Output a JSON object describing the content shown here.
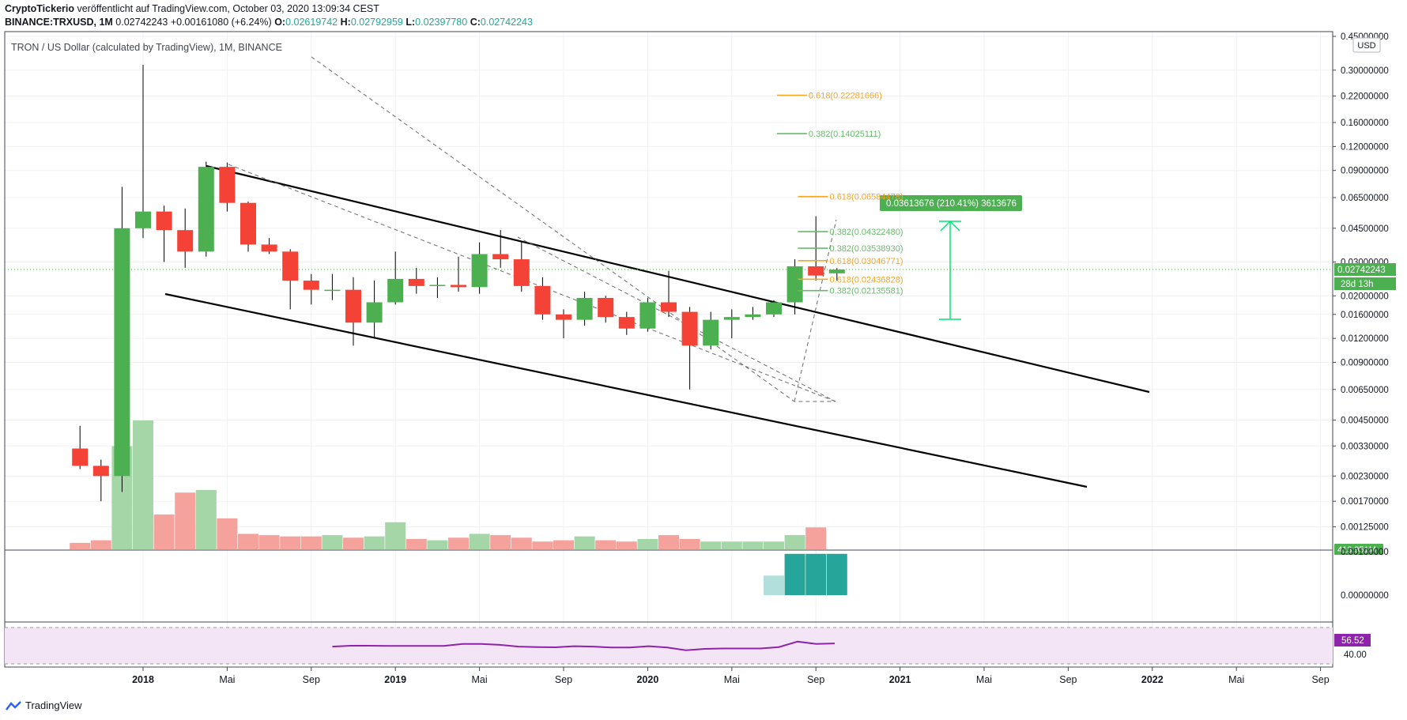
{
  "header": {
    "publisher": "CryptoTickerio",
    "published_text": " veröffentlicht auf TradingView.com, October 03, 2020 13:09:34 CEST",
    "symbol": "BINANCE:TRXUSD, 1M",
    "last": "0.02742243",
    "change": "+0.00161080 (+6.24%)",
    "o_label": "O:",
    "o": "0.02619742",
    "h_label": "H:",
    "h": "0.02792959",
    "l_label": "L:",
    "l": "0.02397780",
    "c_label": "C:",
    "c": "0.02742243"
  },
  "footer": {
    "brand": "TradingView"
  },
  "colors": {
    "up": "#4caf50",
    "down": "#f44336",
    "up_vol": "#a5d6a7",
    "down_vol": "#f5a29c",
    "fib_green": "#66bb6a",
    "fib_orange": "#f5a623",
    "rsi": "#8e24aa",
    "osc": "#26a69a"
  },
  "chart_data": {
    "type": "candlestick",
    "title": "TRON / US Dollar (calculated by TradingView), 1M, BINANCE",
    "currency": "USD",
    "scale": "log",
    "y_range": [
      0.00105,
      0.45
    ],
    "y_ticks": [
      "0.45000000",
      "0.30000000",
      "0.22000000",
      "0.16000000",
      "0.12000000",
      "0.09000000",
      "0.06500000",
      "0.04500000",
      "0.03000000",
      "0.02000000",
      "0.01600000",
      "0.01200000",
      "0.00900000",
      "0.00650000",
      "0.00450000",
      "0.00330000",
      "0.00230000",
      "0.00170000",
      "0.00125000"
    ],
    "price_label": "0.02742243",
    "countdown": "28d 13h",
    "volume_label": "413.951M",
    "x_labels": [
      "2018",
      "Mai",
      "Sep",
      "2019",
      "Mai",
      "Sep",
      "2020",
      "Mai",
      "Sep",
      "2021",
      "Mai",
      "Sep",
      "2022",
      "Mai",
      "Sep"
    ],
    "x_label_index": [
      0,
      4,
      8,
      12,
      16,
      20,
      24,
      28,
      32,
      36,
      40,
      44,
      48,
      52,
      56
    ],
    "candles": [
      {
        "i": -3,
        "o": 0.0032,
        "h": 0.0042,
        "l": 0.0025,
        "c": 0.0026,
        "v": 0.05
      },
      {
        "i": -2,
        "o": 0.0026,
        "h": 0.0028,
        "l": 0.0017,
        "c": 0.0023,
        "v": 0.07
      },
      {
        "i": -1,
        "o": 0.0023,
        "h": 0.074,
        "l": 0.0019,
        "c": 0.045,
        "v": 0.8
      },
      {
        "i": 0,
        "o": 0.045,
        "h": 0.32,
        "l": 0.04,
        "c": 0.055,
        "v": 1.0
      },
      {
        "i": 1,
        "o": 0.055,
        "h": 0.059,
        "l": 0.03,
        "c": 0.044,
        "v": 0.27
      },
      {
        "i": 2,
        "o": 0.044,
        "h": 0.057,
        "l": 0.028,
        "c": 0.034,
        "v": 0.44
      },
      {
        "i": 3,
        "o": 0.034,
        "h": 0.1,
        "l": 0.032,
        "c": 0.094,
        "v": 0.46
      },
      {
        "i": 4,
        "o": 0.094,
        "h": 0.099,
        "l": 0.055,
        "c": 0.061,
        "v": 0.24
      },
      {
        "i": 5,
        "o": 0.061,
        "h": 0.062,
        "l": 0.034,
        "c": 0.037,
        "v": 0.12
      },
      {
        "i": 6,
        "o": 0.037,
        "h": 0.04,
        "l": 0.033,
        "c": 0.034,
        "v": 0.11
      },
      {
        "i": 7,
        "o": 0.034,
        "h": 0.035,
        "l": 0.017,
        "c": 0.024,
        "v": 0.1
      },
      {
        "i": 8,
        "o": 0.024,
        "h": 0.026,
        "l": 0.018,
        "c": 0.0215,
        "v": 0.1
      },
      {
        "i": 9,
        "o": 0.0215,
        "h": 0.026,
        "l": 0.019,
        "c": 0.0215,
        "v": 0.11
      },
      {
        "i": 10,
        "o": 0.0215,
        "h": 0.025,
        "l": 0.011,
        "c": 0.0145,
        "v": 0.09
      },
      {
        "i": 11,
        "o": 0.0145,
        "h": 0.024,
        "l": 0.012,
        "c": 0.0185,
        "v": 0.1
      },
      {
        "i": 12,
        "o": 0.0185,
        "h": 0.034,
        "l": 0.018,
        "c": 0.0245,
        "v": 0.21
      },
      {
        "i": 13,
        "o": 0.0245,
        "h": 0.028,
        "l": 0.0205,
        "c": 0.0225,
        "v": 0.08
      },
      {
        "i": 14,
        "o": 0.0225,
        "h": 0.025,
        "l": 0.0195,
        "c": 0.0228,
        "v": 0.07
      },
      {
        "i": 15,
        "o": 0.0228,
        "h": 0.032,
        "l": 0.021,
        "c": 0.0222,
        "v": 0.09
      },
      {
        "i": 16,
        "o": 0.0222,
        "h": 0.038,
        "l": 0.0205,
        "c": 0.033,
        "v": 0.12
      },
      {
        "i": 17,
        "o": 0.033,
        "h": 0.044,
        "l": 0.028,
        "c": 0.031,
        "v": 0.11
      },
      {
        "i": 18,
        "o": 0.031,
        "h": 0.038,
        "l": 0.021,
        "c": 0.0225,
        "v": 0.09
      },
      {
        "i": 19,
        "o": 0.0225,
        "h": 0.025,
        "l": 0.015,
        "c": 0.016,
        "v": 0.06
      },
      {
        "i": 20,
        "o": 0.016,
        "h": 0.017,
        "l": 0.012,
        "c": 0.015,
        "v": 0.07
      },
      {
        "i": 21,
        "o": 0.015,
        "h": 0.021,
        "l": 0.014,
        "c": 0.0195,
        "v": 0.1
      },
      {
        "i": 22,
        "o": 0.0195,
        "h": 0.02,
        "l": 0.0145,
        "c": 0.0155,
        "v": 0.07
      },
      {
        "i": 23,
        "o": 0.0155,
        "h": 0.0165,
        "l": 0.0125,
        "c": 0.0135,
        "v": 0.06
      },
      {
        "i": 24,
        "o": 0.0135,
        "h": 0.0195,
        "l": 0.013,
        "c": 0.0185,
        "v": 0.08
      },
      {
        "i": 25,
        "o": 0.0185,
        "h": 0.027,
        "l": 0.0155,
        "c": 0.0165,
        "v": 0.11
      },
      {
        "i": 26,
        "o": 0.0165,
        "h": 0.0175,
        "l": 0.0065,
        "c": 0.011,
        "v": 0.08
      },
      {
        "i": 27,
        "o": 0.011,
        "h": 0.0165,
        "l": 0.0105,
        "c": 0.015,
        "v": 0.06
      },
      {
        "i": 28,
        "o": 0.015,
        "h": 0.017,
        "l": 0.012,
        "c": 0.0155,
        "v": 0.06
      },
      {
        "i": 29,
        "o": 0.0155,
        "h": 0.0175,
        "l": 0.015,
        "c": 0.016,
        "v": 0.06
      },
      {
        "i": 30,
        "o": 0.016,
        "h": 0.019,
        "l": 0.0155,
        "c": 0.0185,
        "v": 0.06
      },
      {
        "i": 31,
        "o": 0.0185,
        "h": 0.031,
        "l": 0.016,
        "c": 0.0285,
        "v": 0.11
      },
      {
        "i": 32,
        "o": 0.0285,
        "h": 0.052,
        "l": 0.024,
        "c": 0.0255,
        "v": 0.17
      },
      {
        "i": 33,
        "o": 0.0262,
        "h": 0.0279,
        "l": 0.024,
        "c": 0.0274,
        "v": 0.0
      }
    ],
    "fib_labels": [
      {
        "text": "0.618(0.22281666)",
        "y": 0.222,
        "i": 31.2,
        "color": "orange"
      },
      {
        "text": "0.382(0.14025111)",
        "y": 0.14,
        "i": 31.2,
        "color": "green"
      },
      {
        "text": "0.618(0.06584478)",
        "y": 0.0658,
        "i": 32.2,
        "color": "orange"
      },
      {
        "text": "0.382(0.04322480)",
        "y": 0.0432,
        "i": 32.2,
        "color": "green"
      },
      {
        "text": "0.382(0.03538930)",
        "y": 0.0354,
        "i": 32.2,
        "color": "green"
      },
      {
        "text": "0.618(0.03046771)",
        "y": 0.0305,
        "i": 32.2,
        "color": "orange"
      },
      {
        "text": "0.618(0.02436828)",
        "y": 0.0244,
        "i": 32.2,
        "color": "orange"
      },
      {
        "text": "0.382(0.02135581)",
        "y": 0.0213,
        "i": 32.2,
        "color": "green"
      }
    ],
    "projection_label": "0.03613676 (210.41%) 3613676",
    "oscillator": {
      "ticks": [
        "0.00100000",
        "0.00000000"
      ],
      "bars": [
        0.0009,
        0.0019,
        0.0019,
        0.0019
      ]
    },
    "rsi": {
      "value": "56.52",
      "level": "40.00",
      "series": [
        49,
        50,
        50,
        49.8,
        49.8,
        49.8,
        49.8,
        52,
        52,
        51,
        49,
        48.5,
        48.3,
        49.5,
        49,
        48,
        48,
        49.5,
        48,
        45,
        46.5,
        47,
        47,
        47,
        48.5,
        54.5,
        52,
        52.5
      ]
    }
  }
}
